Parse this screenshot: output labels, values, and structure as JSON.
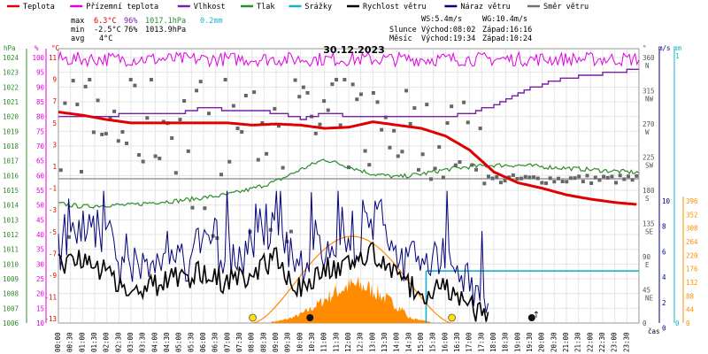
{
  "chart_data": {
    "type": "line",
    "title": "30.12.2023",
    "legend": [
      {
        "label": "Teplota",
        "color": "#e00000"
      },
      {
        "label": "Přízemní teplota",
        "color": "#e000e0"
      },
      {
        "label": "Vlhkost",
        "color": "#7a1fa8"
      },
      {
        "label": "Tlak",
        "color": "#2e8b2e"
      },
      {
        "label": "Srážky",
        "color": "#18b0c8"
      },
      {
        "label": "Rychlost větru",
        "color": "#000000"
      },
      {
        "label": "Náraz větru",
        "color": "#00007a"
      },
      {
        "label": "Směr větru",
        "color": "#707070"
      }
    ],
    "stats": {
      "max_label": "max",
      "max_temp": "6.3°C",
      "max_hum": "96%",
      "max_press": "1017.1hPa",
      "rain": "0.2mm",
      "min_label": "min",
      "min_temp": "-2.5°C",
      "min_hum": "76%",
      "min_press": "1013.9hPa",
      "avg_label": "avg",
      "avg_temp": "4°C",
      "ws": "WS:5.4m/s",
      "wg": "WG:10.4m/s",
      "sun_label": "Slunce",
      "sun_rise": "Východ:08:02",
      "sun_set": "Západ:16:16",
      "moon_label": "Měsíc",
      "moon_rise": "Východ:19:34",
      "moon_set": "Západ:10:24"
    },
    "axes": {
      "hpa_unit": "hPa",
      "pct_unit": "%",
      "degc_unit": "°C",
      "hpa_ticks": [
        "1024",
        "1023",
        "1022",
        "1021",
        "1020",
        "1019",
        "1018",
        "1017",
        "1016",
        "1015",
        "1014",
        "1013",
        "1012",
        "1011",
        "1010",
        "1009",
        "1008",
        "1007",
        "1006"
      ],
      "pct_ticks": [
        "100",
        "95",
        "90",
        "85",
        "80",
        "75",
        "70",
        "65",
        "60",
        "55",
        "50",
        "45",
        "40",
        "35",
        "30",
        "25",
        "20",
        "15",
        "10"
      ],
      "temp_ticks": [
        "11",
        "9",
        "7",
        "5",
        "3",
        "1",
        "-1",
        "-3",
        "-5",
        "-7",
        "-9",
        "-11",
        "-13"
      ],
      "dir_unit": "°",
      "dir_ticks": [
        {
          "deg": "360",
          "name": "N"
        },
        {
          "deg": "315",
          "name": "NW"
        },
        {
          "deg": "270",
          "name": "W"
        },
        {
          "deg": "225",
          "name": "SW"
        },
        {
          "deg": "180",
          "name": "S"
        },
        {
          "deg": "135",
          "name": "SE"
        },
        {
          "deg": "90",
          "name": "E"
        },
        {
          "deg": "45",
          "name": "NE"
        },
        {
          "deg": "0",
          "name": ""
        }
      ],
      "wind_unit": "m/s",
      "wind_ticks": [
        "10",
        "8",
        "6",
        "4",
        "2",
        "0"
      ],
      "rain_unit": "mm",
      "rain_top": "1",
      "rain_ticks": [
        "0"
      ],
      "solar_ticks": [
        "396",
        "352",
        "308",
        "264",
        "220",
        "176",
        "132",
        "88",
        "44",
        "0"
      ],
      "time_ticks": [
        "00:00",
        "00:30",
        "01:00",
        "01:30",
        "02:00",
        "02:30",
        "03:00",
        "03:30",
        "04:00",
        "04:30",
        "05:00",
        "05:30",
        "06:00",
        "06:30",
        "07:00",
        "07:30",
        "08:00",
        "08:30",
        "09:00",
        "09:30",
        "10:00",
        "10:30",
        "11:00",
        "11:30",
        "12:00",
        "12:30",
        "13:00",
        "13:30",
        "14:00",
        "14:30",
        "15:00",
        "15:30",
        "16:00",
        "16:30",
        "17:00",
        "17:30",
        "18:00",
        "18:30",
        "19:00",
        "19:30",
        "20:00",
        "20:30",
        "21:00",
        "21:30",
        "22:00",
        "22:30",
        "23:00",
        "23:30"
      ],
      "time_label": "čas"
    },
    "series": {
      "temperature": {
        "unit": "°C",
        "hours": [
          0,
          1,
          2,
          3,
          4,
          5,
          6,
          7,
          8,
          9,
          10,
          11,
          12,
          13,
          14,
          15,
          16,
          17,
          18,
          19,
          20,
          21,
          22,
          23,
          24
        ],
        "values": [
          6.0,
          5.7,
          5.3,
          5.0,
          5.0,
          5.0,
          5.0,
          5.0,
          4.8,
          4.9,
          4.8,
          4.5,
          4.6,
          5.1,
          4.8,
          4.5,
          3.8,
          2.5,
          0.5,
          -0.5,
          -1.0,
          -1.6,
          -2.0,
          -2.3,
          -2.5
        ]
      },
      "feels_like": {
        "unit": "°C",
        "min": 10.2,
        "max": 11.5
      },
      "humidity": {
        "unit": "%",
        "hours": [
          0,
          1,
          2,
          3,
          4,
          5,
          6,
          7,
          8,
          9,
          10,
          11,
          12,
          13,
          14,
          15,
          16,
          17,
          18,
          19,
          20,
          21,
          22,
          23,
          24
        ],
        "values": [
          80,
          80,
          80,
          81,
          81,
          81,
          83,
          82,
          82,
          81,
          79,
          81,
          80,
          80,
          80,
          80,
          80,
          81,
          84,
          88,
          91,
          93,
          94,
          95,
          96
        ]
      },
      "pressure": {
        "unit": "hPa",
        "hours": [
          0,
          1,
          2,
          3,
          4,
          5,
          6,
          7,
          8,
          9,
          10,
          11,
          12,
          13,
          14,
          15,
          16,
          17,
          18,
          19,
          20,
          21,
          22,
          23,
          24
        ],
        "values": [
          1014.1,
          1013.9,
          1014.0,
          1014.0,
          1014.2,
          1014.3,
          1014.5,
          1014.7,
          1015.1,
          1015.6,
          1016.4,
          1017.1,
          1016.6,
          1016.1,
          1015.9,
          1016.1,
          1016.4,
          1016.6,
          1016.7,
          1016.7,
          1016.6,
          1016.5,
          1016.4,
          1016.3,
          1016.2
        ]
      },
      "rain": {
        "unit": "mm",
        "start_hour": 15.2,
        "value": 0.2
      },
      "wind_speed": {
        "unit": "m/s",
        "hours": [
          0,
          1,
          2,
          3,
          4,
          5,
          6,
          7,
          8,
          9,
          10,
          11,
          12,
          13,
          14,
          15,
          16,
          17,
          18,
          19,
          20,
          21,
          22,
          23,
          24
        ],
        "values": [
          4.5,
          5.4,
          4.0,
          2.5,
          3.0,
          3.5,
          4.0,
          3.2,
          4.0,
          5.0,
          2.6,
          4.2,
          4.5,
          5.4,
          3.5,
          2.3,
          3.0,
          1.5,
          0,
          0,
          0,
          0,
          0,
          0,
          0
        ]
      },
      "wind_gust": {
        "unit": "m/s",
        "max": 10.4
      },
      "wind_dir": {
        "unit": "°",
        "typical_day": 270,
        "typical_evening": 195
      },
      "solar": {
        "unit": "W/m²",
        "peak": 220,
        "peak_time": "12:00",
        "curve_peak": 396,
        "curve_start": "08:02",
        "curve_end": "16:16"
      }
    },
    "markers": {
      "sunrise": "08:02",
      "sunset": "16:16",
      "moonset": "10:24",
      "moonrise": "19:34"
    }
  }
}
